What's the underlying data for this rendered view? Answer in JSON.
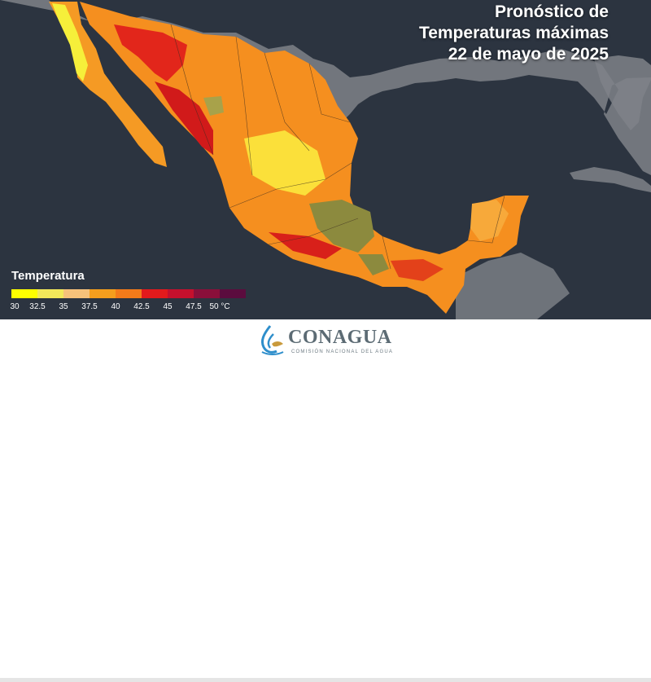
{
  "map": {
    "title_lines": [
      "Pronóstico de",
      "Temperaturas máximas",
      "22 de mayo de 2025"
    ],
    "colors": {
      "ocean": "#2c3440",
      "land_gray": "#8a8e94",
      "very_hot": "#d01818",
      "hot": "#ee6a10",
      "warm": "#f99822",
      "mild": "#fbbd2e",
      "cool": "#f5f226",
      "cooler": "#8c8a3e"
    }
  },
  "legend": {
    "title": "Temperatura",
    "colors": [
      "#ffff00",
      "#f3e95a",
      "#f7c27a",
      "#f59e1d",
      "#f47b1a",
      "#e31a1c",
      "#c5102d",
      "#8a0f3a",
      "#5b0c3e",
      "#f52d98"
    ],
    "labels": [
      "30",
      "32.5",
      "35",
      "37.5",
      "40",
      "42.5",
      "45",
      "47.5",
      "50 °C"
    ]
  },
  "footer": {
    "logo_name": "CONAGUA",
    "logo_sub": "COMISIÓN NACIONAL DEL AGUA",
    "logo_colors": {
      "blue": "#2e8ecb",
      "gold": "#c99a3c",
      "gray": "#5c6b74"
    }
  }
}
